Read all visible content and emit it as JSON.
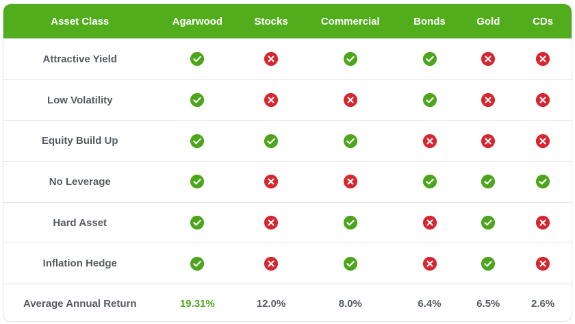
{
  "header": [
    "Asset Class",
    "Agarwood",
    "Stocks",
    "Commercial",
    "Bonds",
    "Gold",
    "CDs"
  ],
  "rows": [
    {
      "label": "Attractive Yield",
      "marks": [
        "check",
        "cross",
        "check",
        "check",
        "cross",
        "cross"
      ]
    },
    {
      "label": "Low Volatility",
      "marks": [
        "check",
        "cross",
        "cross",
        "check",
        "cross",
        "cross"
      ]
    },
    {
      "label": "Equity Build Up",
      "marks": [
        "check",
        "check",
        "check",
        "cross",
        "cross",
        "cross"
      ]
    },
    {
      "label": "No Leverage",
      "marks": [
        "check",
        "cross",
        "cross",
        "check",
        "check",
        "check"
      ]
    },
    {
      "label": "Hard Asset",
      "marks": [
        "check",
        "cross",
        "check",
        "cross",
        "check",
        "cross"
      ]
    },
    {
      "label": "Inflation Hedge",
      "marks": [
        "check",
        "cross",
        "check",
        "cross",
        "check",
        "cross"
      ]
    }
  ],
  "footer": {
    "label": "Average Annual Return",
    "values": [
      "19.31%",
      "12.0%",
      "8.0%",
      "6.4%",
      "6.5%",
      "2.6%"
    ],
    "highlight_index": 0
  },
  "colors": {
    "header_bg": "#52ad1c",
    "check": "#4ca51b",
    "cross": "#d6262f",
    "highlight": "#4da61a"
  }
}
